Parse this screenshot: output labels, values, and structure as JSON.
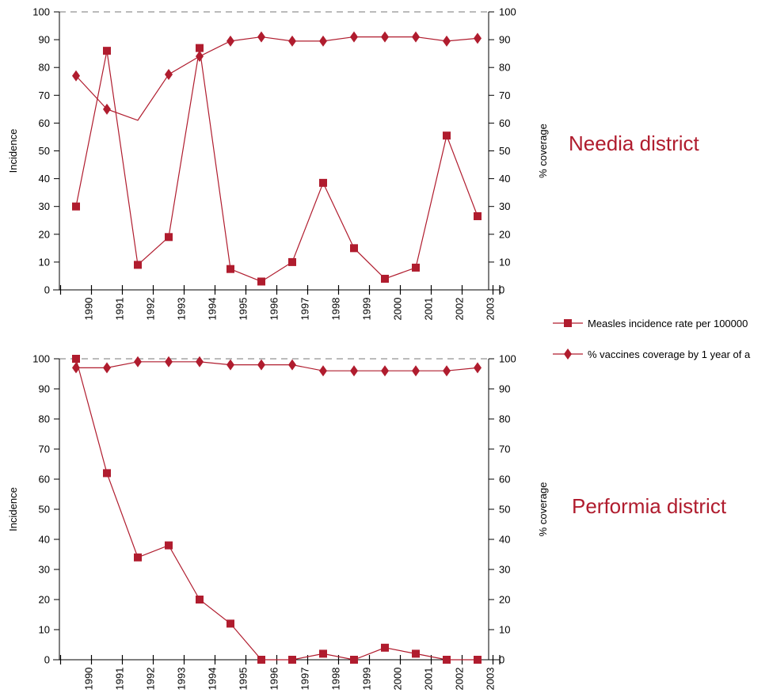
{
  "colors": {
    "series": "#b01c2e",
    "axis": "#000000",
    "reference_line": "#777777",
    "district_title": "#b01c2e"
  },
  "legend": {
    "incidence_label": "Measles incidence rate per 100000",
    "coverage_label": "% vaccines coverage by 1 year of a"
  },
  "chart_data": [
    {
      "type": "line",
      "district_title": "Needia district",
      "ylabel_left": "Incidence",
      "ylabel_right": "% coverage",
      "ylim": [
        0,
        100
      ],
      "yticks": [
        "0",
        "10",
        "20",
        "30",
        "40",
        "50",
        "60",
        "70",
        "80",
        "90",
        "100"
      ],
      "reference_line_y": 100,
      "x": [
        "1990",
        "1991",
        "1992",
        "1993",
        "1994",
        "1995",
        "1996",
        "1997",
        "1998",
        "1999",
        "2000",
        "2001",
        "2002",
        "2003"
      ],
      "series": [
        {
          "name": "Measles incidence rate per 100000",
          "marker": "square",
          "values": [
            30,
            86,
            9,
            19,
            87,
            7.5,
            3,
            10,
            38.5,
            15,
            4,
            8,
            55.5,
            26.5
          ]
        },
        {
          "name": "% vaccines coverage by 1 year of a",
          "marker": "diamond",
          "values": [
            77,
            65,
            61,
            77.5,
            84,
            89.5,
            91,
            89.5,
            89.5,
            91,
            91,
            91,
            89.5,
            90.5
          ],
          "markers_shown": [
            true,
            true,
            false,
            true,
            true,
            true,
            true,
            true,
            true,
            true,
            true,
            true,
            true,
            true
          ]
        }
      ]
    },
    {
      "type": "line",
      "district_title": "Performia district",
      "ylabel_left": "Incidence",
      "ylabel_right": "% coverage",
      "ylim": [
        0,
        100
      ],
      "yticks": [
        "0",
        "10",
        "20",
        "30",
        "40",
        "50",
        "60",
        "70",
        "80",
        "90",
        "100"
      ],
      "reference_line_y": 100,
      "x": [
        "1990",
        "1991",
        "1992",
        "1993",
        "1994",
        "1995",
        "1996",
        "1997",
        "1998",
        "1999",
        "2000",
        "2001",
        "2002",
        "2003"
      ],
      "series": [
        {
          "name": "Measles incidence rate per 100000",
          "marker": "square",
          "values": [
            100,
            62,
            34,
            38,
            20,
            12,
            0,
            0,
            2,
            0,
            4,
            2,
            0,
            0
          ]
        },
        {
          "name": "% vaccines coverage by 1 year of a",
          "marker": "diamond",
          "values": [
            97,
            97,
            99,
            99,
            99,
            98,
            98,
            98,
            96,
            96,
            96,
            96,
            96,
            97
          ]
        }
      ]
    }
  ]
}
